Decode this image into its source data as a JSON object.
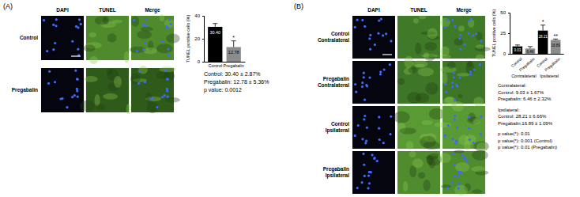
{
  "chart_data": [
    {
      "type": "bar",
      "y_label": "TUNEL positive cells (%)",
      "categories": [
        "Control",
        "Pregabalin"
      ],
      "values": [
        30.4,
        12.78
      ],
      "value_labels": [
        "30.40",
        "12.78"
      ],
      "errors": [
        2.87,
        5.36
      ],
      "colors": [
        "#000000",
        "#8c8c8c"
      ],
      "ylim": [
        0,
        40
      ],
      "yticks": [
        0,
        20,
        40
      ],
      "grid": false,
      "data_labels": true,
      "annotations": [
        {
          "index": 1,
          "text": "*"
        }
      ],
      "notes": [
        [
          "Control: 30.40 ± 2.87%",
          "Pregabalin: 12.78 ± 5.36%",
          "p value: 0.0012"
        ]
      ]
    },
    {
      "type": "bar",
      "y_label": "TUNEL positive cells (%)",
      "categories": [
        "Control",
        "Pregabalin",
        "Control",
        "Pregabalin"
      ],
      "group_labels": [
        "Contralateral",
        "Ipsilateral"
      ],
      "values": [
        9.03,
        6.46,
        28.21,
        16.89
      ],
      "errors": [
        1.67,
        2.32,
        6.66,
        1.09
      ],
      "colors": [
        "#000000",
        "#8c8c8c",
        "#000000",
        "#8c8c8c"
      ],
      "ylim": [
        0,
        50
      ],
      "yticks": [
        0,
        25,
        50
      ],
      "grid": false,
      "data_labels": true,
      "annotations": [
        {
          "index": 2,
          "text": "*"
        },
        {
          "index": 3,
          "text": "**"
        }
      ],
      "notes": [
        [
          "Contralateral:",
          "Control: 9.03 ± 1.67%",
          "Pregabalin: 6.46 ± 2.32%"
        ],
        [
          "Ipsilateral:",
          "Control: 28.21 ± 6.66%",
          "Pregabalin:16.89 ± 1.09%"
        ],
        [
          "p value(*): 0.01",
          "p value(*): 0.001 (Control)",
          "p value(*): 0.01 (Pregabalin)"
        ]
      ]
    }
  ],
  "figure": {
    "panels": [
      {
        "label": "(A)",
        "columns": [
          "DAPI",
          "TUNEL",
          "Merge"
        ],
        "rows": [
          [
            "Control"
          ],
          [
            "Pregabalin"
          ]
        ]
      },
      {
        "label": "(B)",
        "columns": [
          "DAPI",
          "TUNEL",
          "Merge"
        ],
        "rows": [
          [
            "Control",
            "Contralateral"
          ],
          [
            "Pregabalin",
            "Contralateral"
          ],
          [
            "Control",
            "Ipsilateral"
          ],
          [
            "Pregabalin",
            "Ipsilateral"
          ]
        ]
      }
    ]
  }
}
